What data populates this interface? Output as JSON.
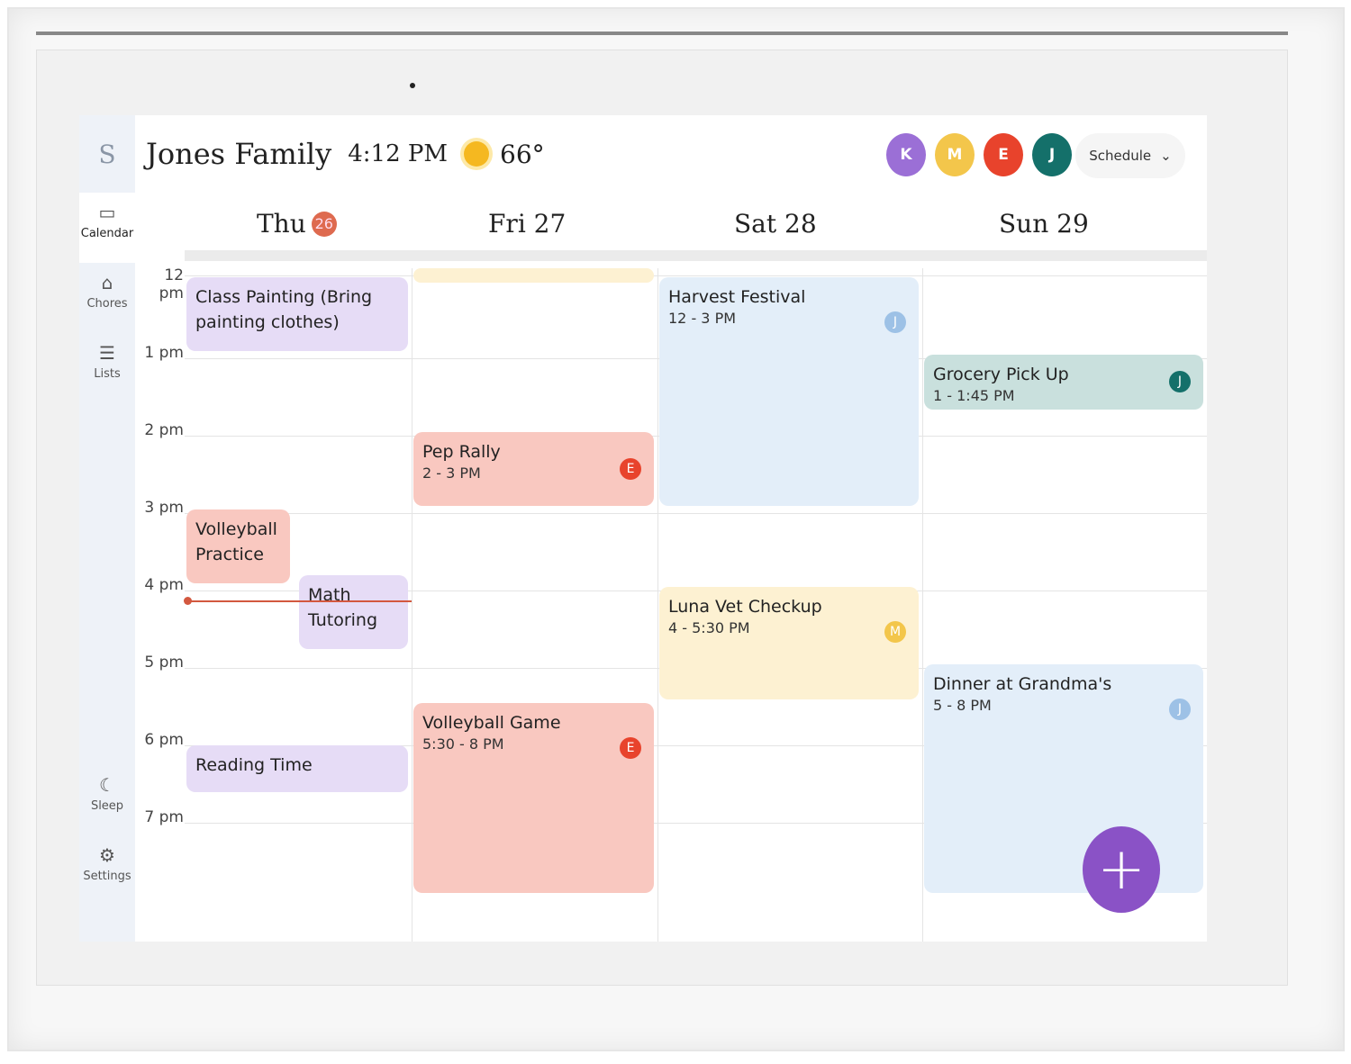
{
  "sidebar": {
    "logo": "S",
    "items": [
      {
        "label": "Calendar",
        "icon": "calendar-icon",
        "glyph": "▭",
        "active": true
      },
      {
        "label": "Chores",
        "icon": "broom-icon",
        "glyph": "⌂"
      },
      {
        "label": "Lists",
        "icon": "list-icon",
        "glyph": "☰"
      }
    ],
    "bottom": [
      {
        "label": "Sleep",
        "icon": "moon-icon",
        "glyph": "☾"
      },
      {
        "label": "Settings",
        "icon": "gear-icon",
        "glyph": "⚙"
      }
    ]
  },
  "header": {
    "title": "Jones Family",
    "time": "4:12 PM",
    "weather_icon": "sun-icon",
    "temperature": "66°",
    "members": [
      {
        "initial": "K",
        "color": "#9b6fd6"
      },
      {
        "initial": "M",
        "color": "#f3c64b"
      },
      {
        "initial": "E",
        "color": "#e8432c"
      },
      {
        "initial": "J",
        "color": "#14706a"
      }
    ],
    "view_select": "Schedule"
  },
  "days": [
    {
      "label": "Thu",
      "date": "26",
      "today": true
    },
    {
      "label": "Fri 27"
    },
    {
      "label": "Sat 28"
    },
    {
      "label": "Sun 29"
    }
  ],
  "hours": [
    "12 pm",
    "1 pm",
    "2 pm",
    "3 pm",
    "4 pm",
    "5 pm",
    "6 pm",
    "7 pm"
  ],
  "current_time_hour": 16.2,
  "events": [
    {
      "day": 0,
      "title": "Class Painting (Bring painting clothes)",
      "subtitle": "",
      "start": 12,
      "end": 13,
      "color": "#e6dcf6"
    },
    {
      "day": 0,
      "title": "Volleyball Practice",
      "subtitle": "",
      "start": 15,
      "end": 16,
      "color": "#f9c8c0",
      "half": "left"
    },
    {
      "day": 0,
      "title": "Math Tutoring",
      "subtitle": "",
      "start": 15.85,
      "end": 16.85,
      "color": "#e6dcf6",
      "half": "right"
    },
    {
      "day": 0,
      "title": "Reading Time",
      "subtitle": "",
      "start": 6.05,
      "end": 6.7,
      "color": "#e6dcf6"
    },
    {
      "day": 1,
      "title": "",
      "subtitle": "",
      "start": 11.8,
      "end": 12,
      "color": "#fdf1d2"
    },
    {
      "day": 1,
      "title": "Pep Rally",
      "subtitle": "2 - 3 PM",
      "start": 14,
      "end": 15,
      "color": "#f9c8c0",
      "avatar": "E",
      "avatar_color": "#e8432c"
    },
    {
      "day": 1,
      "title": "Volleyball Game",
      "subtitle": "5:30 - 8 PM",
      "start": 17.5,
      "end": 20,
      "color": "#f9c8c0",
      "avatar": "E",
      "avatar_color": "#e8432c"
    },
    {
      "day": 2,
      "title": "Harvest Festival",
      "subtitle": "12 - 3 PM",
      "start": 12,
      "end": 15,
      "color": "#e3eef9",
      "avatar": "J",
      "avatar_color": "#9dc1e6"
    },
    {
      "day": 2,
      "title": "Luna Vet Checkup",
      "subtitle": "4 - 5:30 PM",
      "start": 16,
      "end": 17.5,
      "color": "#fdf1d2",
      "avatar": "M",
      "avatar_color": "#f3c64b"
    },
    {
      "day": 3,
      "title": "Grocery Pick Up",
      "subtitle": "1 - 1:45 PM",
      "start": 13,
      "end": 13.75,
      "color": "#c9e0dd",
      "avatar": "J",
      "avatar_color": "#14706a"
    },
    {
      "day": 3,
      "title": "Dinner at Grandma's",
      "subtitle": "5 - 8 PM",
      "start": 17,
      "end": 20,
      "color": "#e3eef9",
      "avatar": "J",
      "avatar_color": "#9dc1e6"
    }
  ],
  "fab": {
    "label": "+",
    "icon": "plus-icon"
  }
}
